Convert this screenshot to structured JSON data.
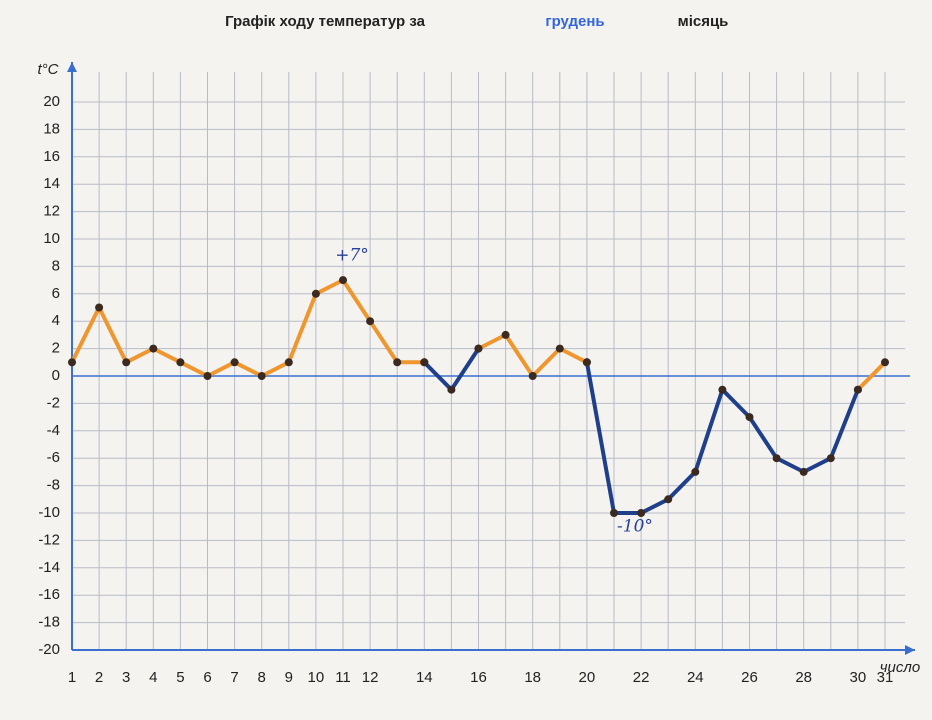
{
  "chart_data": {
    "type": "line",
    "title": "Графік ходу температур за",
    "month": "грудень",
    "title_suffix": "місяць",
    "ylabel": "t°C",
    "xlabel": "число",
    "x": [
      1,
      2,
      3,
      4,
      5,
      6,
      7,
      8,
      9,
      10,
      11,
      12,
      13,
      14,
      15,
      16,
      17,
      18,
      19,
      20,
      21,
      22,
      23,
      24,
      25,
      26,
      27,
      28,
      29,
      30,
      31
    ],
    "series": [
      {
        "color": "#f0962e",
        "values": [
          1,
          5,
          1,
          2,
          1,
          0,
          1,
          0,
          1,
          6,
          7,
          4,
          1,
          1,
          null,
          2,
          3,
          0,
          2,
          1,
          null,
          null,
          null,
          null,
          null,
          null,
          null,
          null,
          null,
          -1,
          1
        ]
      },
      {
        "color": "#1f3f8a",
        "values": [
          null,
          null,
          null,
          null,
          null,
          null,
          null,
          null,
          null,
          null,
          null,
          null,
          null,
          1,
          -1,
          2,
          null,
          null,
          null,
          1,
          -10,
          -10,
          -9,
          -7,
          -1,
          -3,
          -6,
          -7,
          -6,
          -1,
          null
        ]
      }
    ],
    "xlim": [
      1,
      31
    ],
    "xticks": [
      1,
      2,
      3,
      4,
      5,
      6,
      7,
      8,
      9,
      10,
      11,
      12,
      14,
      16,
      18,
      20,
      22,
      24,
      26,
      28,
      30,
      31
    ],
    "ylim": [
      -20,
      20
    ],
    "yticks": [
      -20,
      -18,
      -16,
      -14,
      -12,
      -10,
      -8,
      -6,
      -4,
      -2,
      0,
      2,
      4,
      6,
      8,
      10,
      12,
      14,
      16,
      18,
      20
    ],
    "annotations": [
      "+7°",
      "-10°"
    ],
    "grid": true
  }
}
